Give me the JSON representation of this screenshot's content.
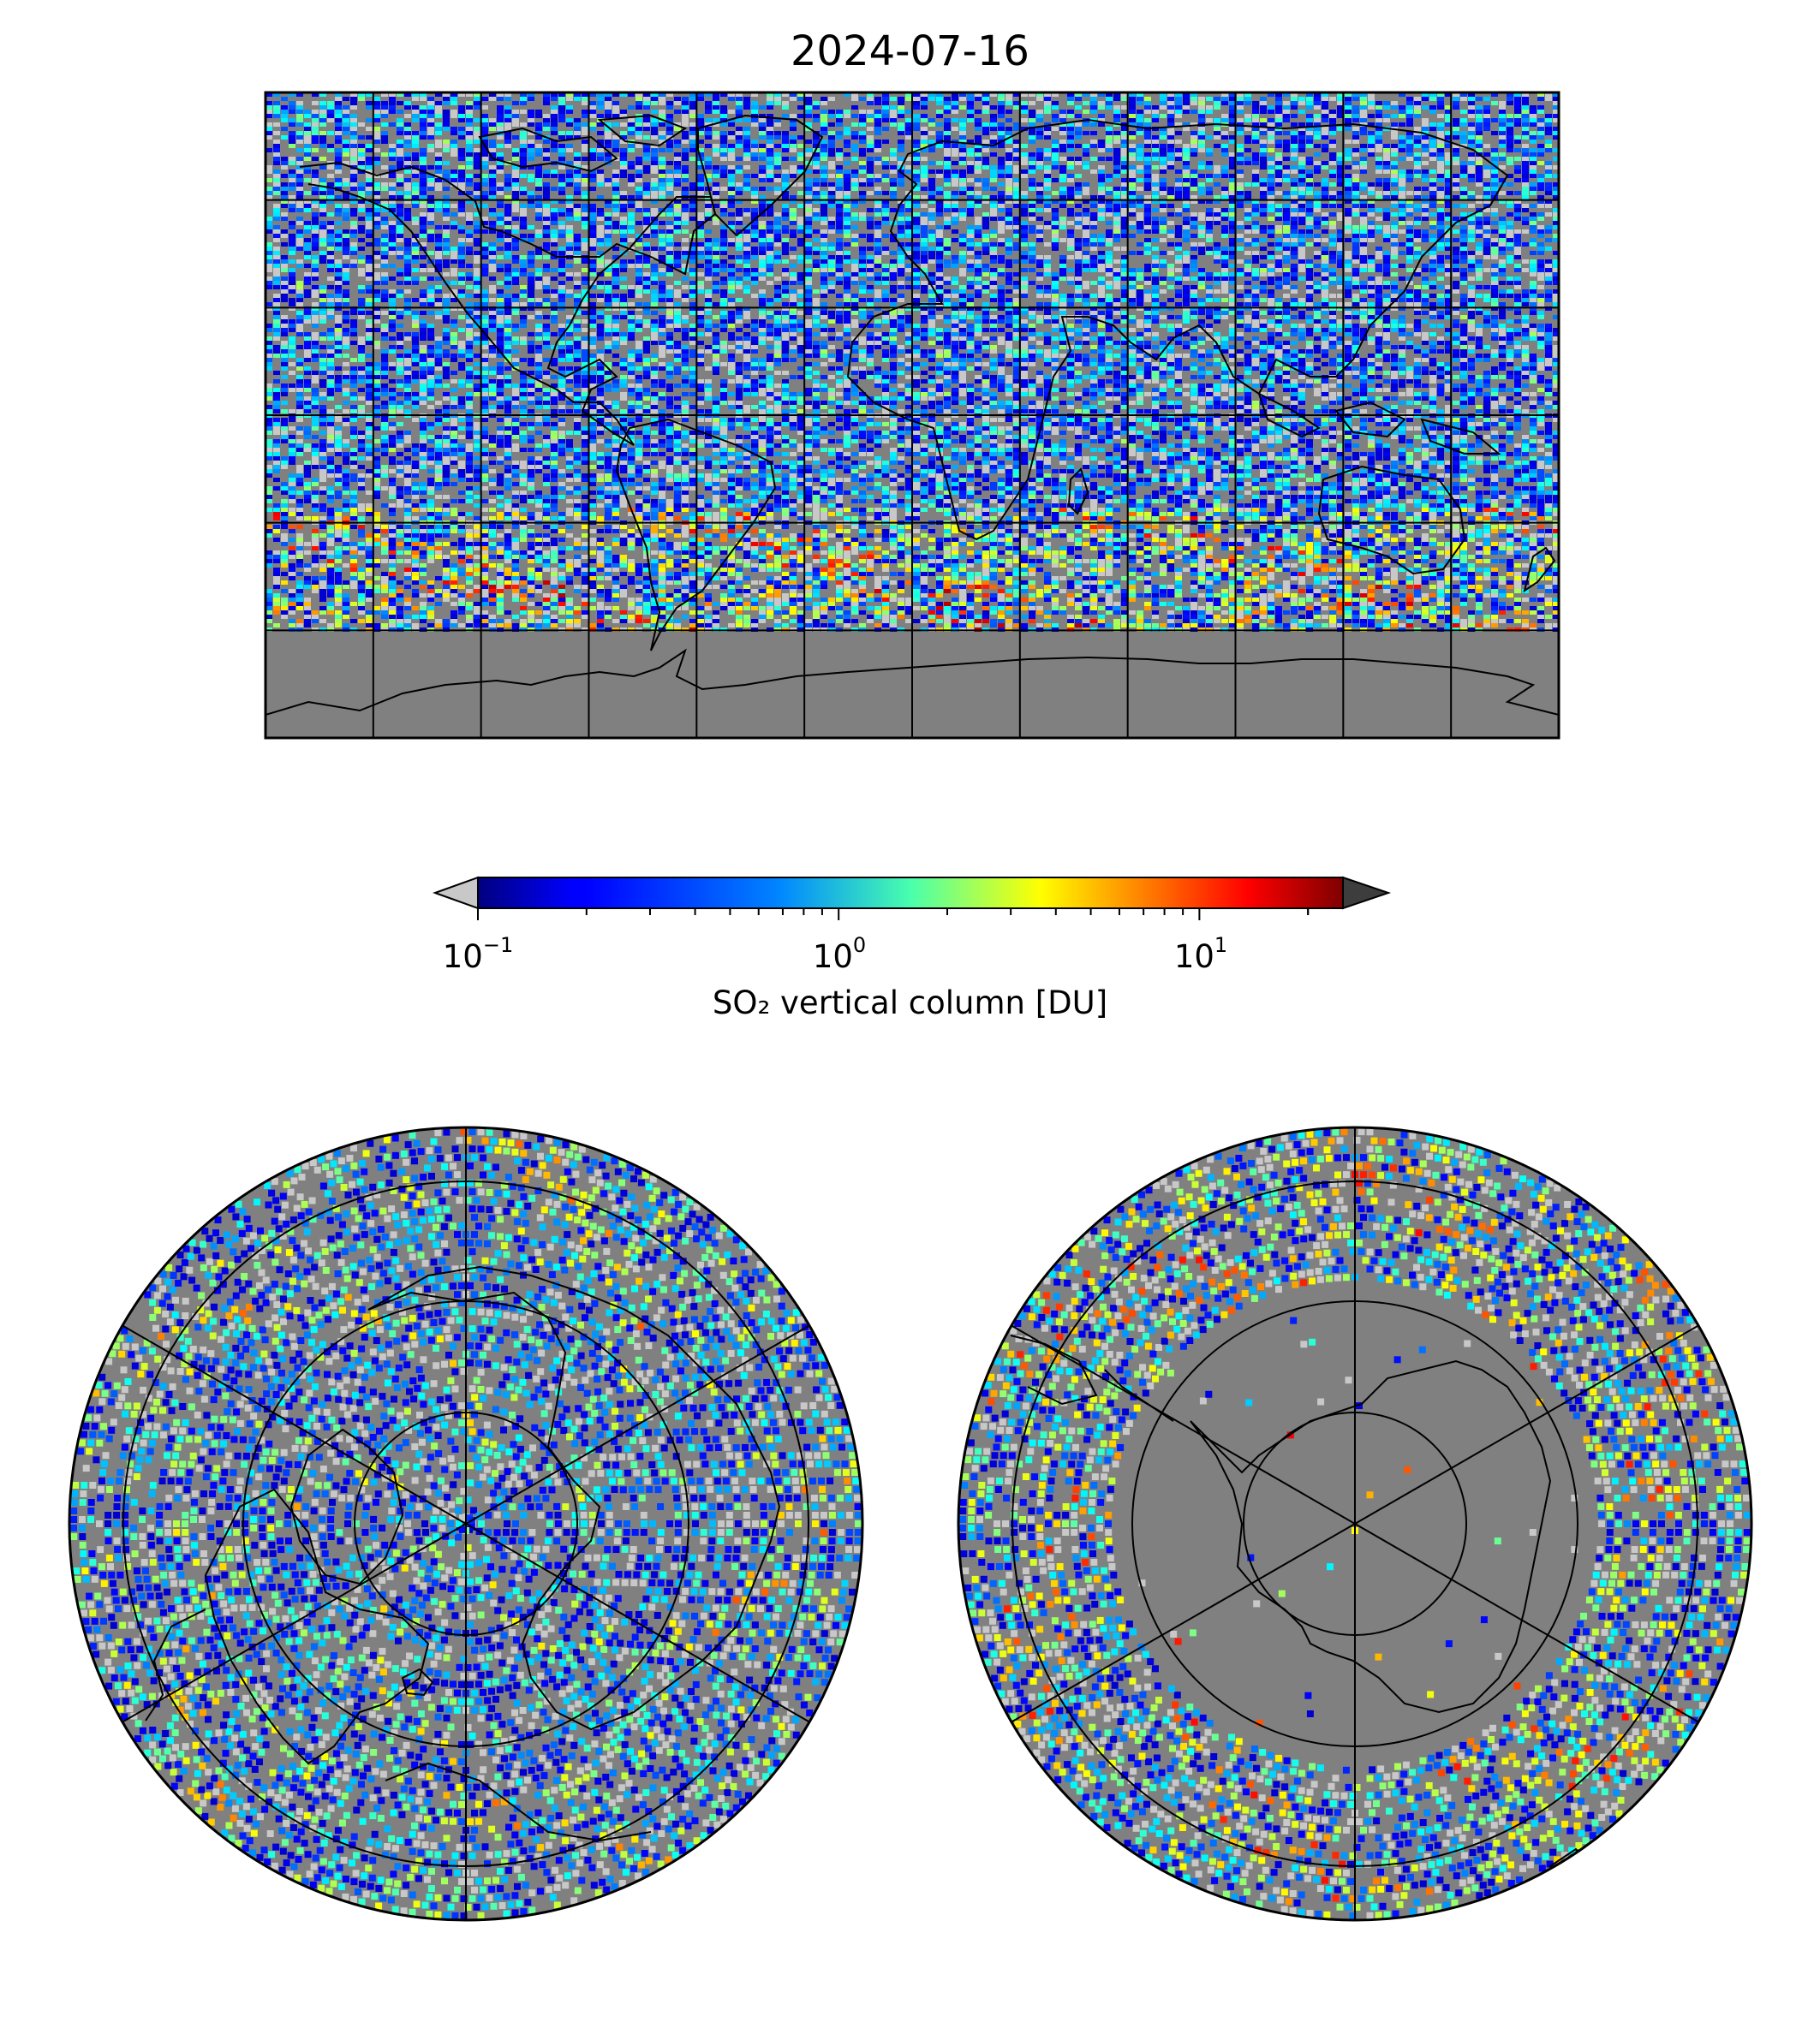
{
  "title": "2024-07-16",
  "colorbar": {
    "label": "SO₂ vertical column [DU]",
    "scale": "log",
    "range": [
      0.1,
      25
    ],
    "extend": "both",
    "under_color": "#c8c8c8",
    "over_color": "#3d3d3d",
    "colormap": "jet",
    "ticks": [
      {
        "base": "10",
        "exp": "−1",
        "value": 0.1
      },
      {
        "base": "10",
        "exp": "0",
        "value": 1
      },
      {
        "base": "10",
        "exp": "1",
        "value": 10
      }
    ]
  },
  "colors": {
    "no_data": "#808080",
    "coastline": "#000000",
    "gridline": "#000000"
  },
  "maps": [
    {
      "name": "global",
      "projection": "equirectangular",
      "lon_range": [
        -180,
        180
      ],
      "lat_range": [
        -90,
        90
      ],
      "grid_lon_step": 30,
      "grid_lat_step": 30
    },
    {
      "name": "north-polar",
      "projection": "north-polar-stereographic",
      "grid_lat": [
        60,
        75
      ],
      "grid_lon_step": 60
    },
    {
      "name": "south-polar",
      "projection": "south-polar-stereographic",
      "grid_lat": [
        -60,
        -75
      ],
      "grid_lon_step": 60
    }
  ]
}
